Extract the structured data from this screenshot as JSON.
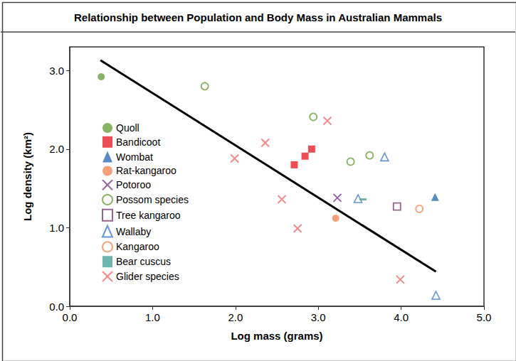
{
  "chart_data": {
    "type": "scatter",
    "title": "Relationship between Population and Body Mass in Australian Mammals",
    "x_label": "Log mass (grams)",
    "y_label": "Log density (km²)",
    "xlim": [
      0,
      5
    ],
    "ylim": [
      0,
      3.3
    ],
    "xticks": [
      {
        "value": 0,
        "label": "0.0"
      },
      {
        "value": 1,
        "label": "1.0"
      },
      {
        "value": 2,
        "label": "2.0"
      },
      {
        "value": 3,
        "label": "3.0"
      },
      {
        "value": 4,
        "label": "4.0"
      },
      {
        "value": 5,
        "label": "5.0"
      }
    ],
    "yticks": [
      {
        "value": 0,
        "label": "0.0"
      },
      {
        "value": 1,
        "label": "1.0"
      },
      {
        "value": 2,
        "label": "2.0"
      },
      {
        "value": 3,
        "label": "3.0"
      }
    ],
    "grid": false,
    "legend": "left",
    "series": [
      {
        "name": "Quoll",
        "color": "#6a9f3e",
        "marker": "circle",
        "x": [
          0.38
        ],
        "values": [
          2.92
        ]
      },
      {
        "name": "Bandicoot",
        "color": "#e8202a",
        "marker": "square",
        "x": [
          2.71,
          2.84,
          2.92
        ],
        "values": [
          1.8,
          1.91,
          2.0
        ]
      },
      {
        "name": "Wombat",
        "color": "#2f6db5",
        "marker": "triangle",
        "x": [
          4.41
        ],
        "values": [
          1.39
        ]
      },
      {
        "name": "Rat-kangaroo",
        "color": "#f08a5d",
        "marker": "circle",
        "x": [
          3.21
        ],
        "values": [
          1.12
        ]
      },
      {
        "name": "Potoroo",
        "color": "#7b3f8c",
        "marker": "x",
        "x": [
          3.23
        ],
        "values": [
          1.38
        ]
      },
      {
        "name": "Possom species",
        "color": "#6a9f3e",
        "marker": "open_circle",
        "x": [
          1.63,
          2.94,
          3.39,
          3.62
        ],
        "values": [
          2.8,
          2.41,
          1.84,
          1.92
        ]
      },
      {
        "name": "Tree kangaroo",
        "color": "#7d3f6e",
        "marker": "open_square",
        "x": [
          3.95
        ],
        "values": [
          1.27
        ]
      },
      {
        "name": "Wallaby",
        "color": "#3d7cc9",
        "marker": "open_triangle",
        "x": [
          3.8,
          3.48,
          4.42
        ],
        "values": [
          1.9,
          1.37,
          0.14
        ]
      },
      {
        "name": "Kangaroo",
        "color": "#f28a5a",
        "marker": "open_circle",
        "x": [
          4.22
        ],
        "values": [
          1.24
        ]
      },
      {
        "name": "Bear cuscus",
        "color": "#4aa39a",
        "marker": "dash",
        "x": [
          3.54
        ],
        "values": [
          1.36
        ]
      },
      {
        "name": "Glider species",
        "color": "#f06e6e",
        "marker": "x",
        "x": [
          3.11,
          2.36,
          1.99,
          2.56,
          2.75,
          3.99
        ],
        "values": [
          2.36,
          2.08,
          1.88,
          1.36,
          0.99,
          0.34
        ]
      },
      {
        "type": "line",
        "color": "#000000",
        "line_style": "solid",
        "x": [
          0.37,
          4.42
        ],
        "values": [
          3.13,
          0.44
        ]
      }
    ]
  }
}
